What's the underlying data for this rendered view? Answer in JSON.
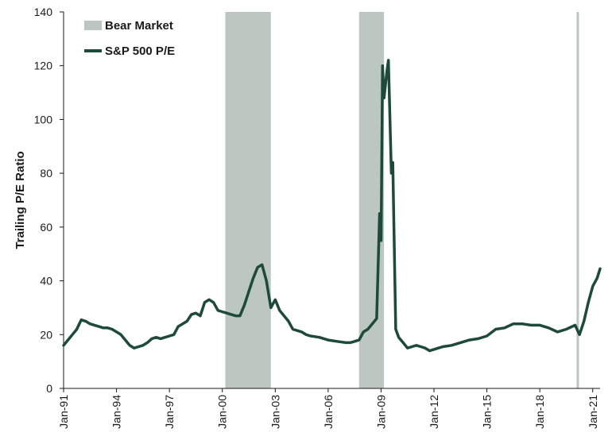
{
  "chart_data": {
    "type": "line",
    "title": "",
    "xlabel": "",
    "ylabel": "Trailing P/E Ratio",
    "ylim": [
      0,
      140
    ],
    "yticks": [
      0,
      20,
      40,
      60,
      80,
      100,
      120,
      140
    ],
    "xlim": [
      "1991-01",
      "2021-06"
    ],
    "xticks": [
      "Jan-91",
      "Jan-94",
      "Jan-97",
      "Jan-00",
      "Jan-03",
      "Jan-06",
      "Jan-09",
      "Jan-12",
      "Jan-15",
      "Jan-18",
      "Jan-21"
    ],
    "grid": false,
    "legend_position": "top-left",
    "legend": [
      {
        "label": "Bear Market",
        "kind": "area"
      },
      {
        "label": "S&P 500 P/E",
        "kind": "line"
      }
    ],
    "bear_markets": [
      {
        "start": "2000-03",
        "end": "2002-10"
      },
      {
        "start": "2007-10",
        "end": "2009-03"
      },
      {
        "start": "2020-02",
        "end": "2020-03"
      }
    ],
    "series": [
      {
        "name": "S&P 500 P/E",
        "points": [
          [
            "1991-01",
            16
          ],
          [
            "1991-04",
            18
          ],
          [
            "1991-07",
            20
          ],
          [
            "1991-10",
            22
          ],
          [
            "1992-01",
            25.5
          ],
          [
            "1992-04",
            25
          ],
          [
            "1992-07",
            24
          ],
          [
            "1992-10",
            23.5
          ],
          [
            "1993-01",
            23
          ],
          [
            "1993-04",
            22.5
          ],
          [
            "1993-07",
            22.5
          ],
          [
            "1993-10",
            22
          ],
          [
            "1994-01",
            21
          ],
          [
            "1994-04",
            20
          ],
          [
            "1994-07",
            18
          ],
          [
            "1994-10",
            16
          ],
          [
            "1995-01",
            15
          ],
          [
            "1995-04",
            15.5
          ],
          [
            "1995-07",
            16
          ],
          [
            "1995-10",
            17
          ],
          [
            "1996-01",
            18.5
          ],
          [
            "1996-04",
            19
          ],
          [
            "1996-07",
            18.5
          ],
          [
            "1996-10",
            19
          ],
          [
            "1997-01",
            19.5
          ],
          [
            "1997-04",
            20
          ],
          [
            "1997-07",
            23
          ],
          [
            "1997-10",
            24
          ],
          [
            "1998-01",
            25
          ],
          [
            "1998-04",
            27.5
          ],
          [
            "1998-07",
            28
          ],
          [
            "1998-10",
            27
          ],
          [
            "1999-01",
            32
          ],
          [
            "1999-04",
            33
          ],
          [
            "1999-07",
            32
          ],
          [
            "1999-10",
            29
          ],
          [
            "2000-01",
            28.5
          ],
          [
            "2000-04",
            28
          ],
          [
            "2000-07",
            27.5
          ],
          [
            "2000-10",
            27
          ],
          [
            "2001-01",
            27
          ],
          [
            "2001-04",
            31
          ],
          [
            "2001-07",
            36
          ],
          [
            "2001-10",
            41
          ],
          [
            "2002-01",
            45
          ],
          [
            "2002-04",
            46
          ],
          [
            "2002-07",
            40
          ],
          [
            "2002-10",
            30
          ],
          [
            "2003-01",
            33
          ],
          [
            "2003-04",
            29
          ],
          [
            "2003-07",
            27
          ],
          [
            "2003-10",
            25
          ],
          [
            "2004-01",
            22
          ],
          [
            "2004-04",
            21.5
          ],
          [
            "2004-07",
            21
          ],
          [
            "2004-10",
            20
          ],
          [
            "2005-01",
            19.5
          ],
          [
            "2005-07",
            19
          ],
          [
            "2006-01",
            18
          ],
          [
            "2006-07",
            17.5
          ],
          [
            "2007-01",
            17
          ],
          [
            "2007-04",
            17
          ],
          [
            "2007-07",
            17.5
          ],
          [
            "2007-10",
            18
          ],
          [
            "2008-01",
            21
          ],
          [
            "2008-04",
            22
          ],
          [
            "2008-07",
            24
          ],
          [
            "2008-10",
            26
          ],
          [
            "2008-12",
            65
          ],
          [
            "2009-01",
            55
          ],
          [
            "2009-02",
            120
          ],
          [
            "2009-03",
            108
          ],
          [
            "2009-05",
            118
          ],
          [
            "2009-06",
            122
          ],
          [
            "2009-08",
            80
          ],
          [
            "2009-09",
            84
          ],
          [
            "2009-11",
            22
          ],
          [
            "2010-01",
            19
          ],
          [
            "2010-04",
            17
          ],
          [
            "2010-07",
            15
          ],
          [
            "2010-10",
            15.5
          ],
          [
            "2011-01",
            16
          ],
          [
            "2011-04",
            15.5
          ],
          [
            "2011-07",
            15
          ],
          [
            "2011-10",
            14
          ],
          [
            "2012-01",
            14.5
          ],
          [
            "2012-04",
            15
          ],
          [
            "2012-07",
            15.5
          ],
          [
            "2013-01",
            16
          ],
          [
            "2013-07",
            17
          ],
          [
            "2014-01",
            18
          ],
          [
            "2014-07",
            18.5
          ],
          [
            "2015-01",
            19.5
          ],
          [
            "2015-07",
            22
          ],
          [
            "2016-01",
            22.5
          ],
          [
            "2016-07",
            24
          ],
          [
            "2017-01",
            24
          ],
          [
            "2017-07",
            23.5
          ],
          [
            "2018-01",
            23.5
          ],
          [
            "2018-07",
            22.5
          ],
          [
            "2019-01",
            21
          ],
          [
            "2019-07",
            22
          ],
          [
            "2020-01",
            23.5
          ],
          [
            "2020-04",
            20
          ],
          [
            "2020-07",
            25
          ],
          [
            "2020-10",
            32
          ],
          [
            "2021-01",
            38
          ],
          [
            "2021-04",
            41
          ],
          [
            "2021-06",
            44.5
          ]
        ]
      }
    ]
  }
}
